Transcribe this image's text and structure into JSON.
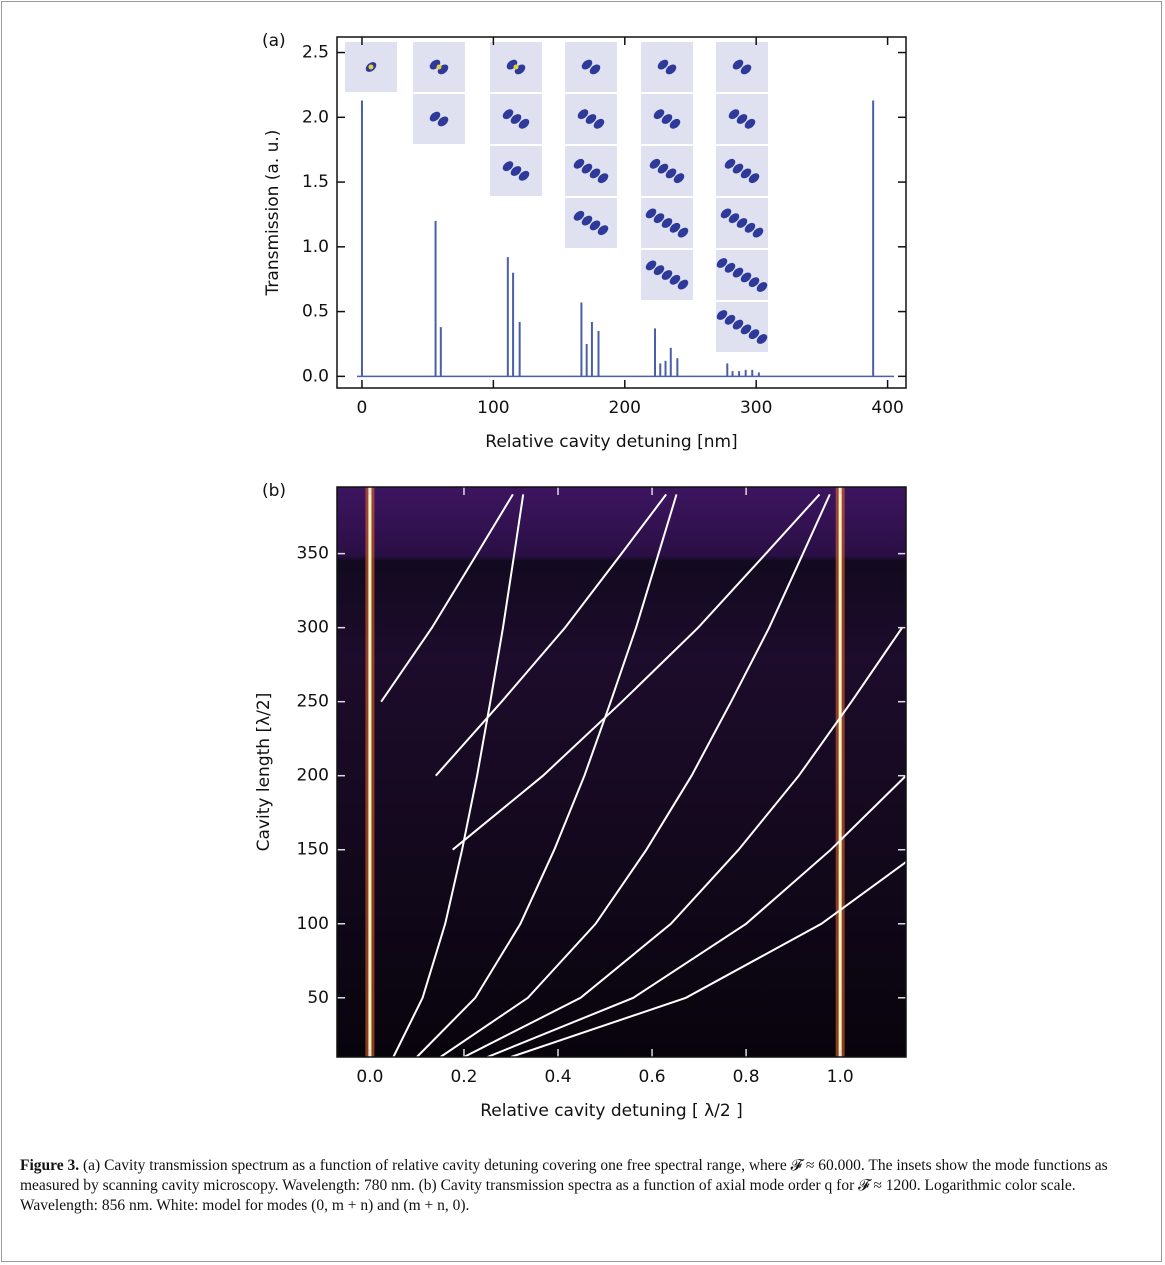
{
  "charts": [
    {
      "type": "spike",
      "panel_label": "(a)",
      "x_label": "Relative cavity detuning [nm]",
      "y_label": "Transmission (a. u.)",
      "x": [
        0,
        56,
        60,
        111,
        115,
        120,
        167,
        171,
        175,
        180,
        223,
        227,
        231,
        235,
        240,
        278,
        282,
        287,
        292,
        297,
        302,
        389
      ],
      "values": [
        2.13,
        1.2,
        0.38,
        0.92,
        0.8,
        0.42,
        0.57,
        0.25,
        0.42,
        0.35,
        0.37,
        0.1,
        0.12,
        0.22,
        0.14,
        0.1,
        0.04,
        0.04,
        0.05,
        0.05,
        0.03,
        2.13
      ],
      "color": "#4a5fa8",
      "xlim": [
        -19,
        414
      ],
      "ylim": [
        -0.09,
        2.62
      ],
      "xticks": [
        0,
        100,
        200,
        300,
        400
      ],
      "yticks": [
        {
          "value": 0,
          "label": "0.0"
        },
        0.5,
        {
          "value": 1,
          "label": "1.0"
        },
        1.5,
        {
          "value": 2,
          "label": "2.0"
        },
        2.5
      ]
    },
    {
      "type": "line",
      "panel_label": "(b)",
      "x_label": "Relative cavity detuning [ λ/2 ]",
      "y_label": "Cavity length [λ/2]",
      "resonances": [
        0,
        1
      ],
      "series": [
        {
          "color": "#ffffff",
          "x": [
            0.05,
            0.112,
            0.16,
            0.196,
            0.228,
            0.256,
            0.283,
            0.307,
            0.326
          ],
          "y": [
            10,
            50,
            100,
            150,
            200,
            250,
            300,
            350,
            390
          ]
        },
        {
          "color": "#ffffff",
          "x": [
            0.1,
            0.224,
            0.32,
            0.392,
            0.456,
            0.512,
            0.566,
            0.614,
            0.652
          ],
          "y": [
            10,
            50,
            100,
            150,
            200,
            250,
            300,
            350,
            390
          ]
        },
        {
          "color": "#ffffff",
          "x": [
            0.15,
            0.336,
            0.48,
            0.588,
            0.684,
            0.768,
            0.849,
            0.921,
            0.978
          ],
          "y": [
            10,
            50,
            100,
            150,
            200,
            250,
            300,
            350,
            390
          ]
        },
        {
          "color": "#ffffff",
          "x": [
            0.2,
            0.448,
            0.64,
            0.784,
            0.912,
            1.024,
            1.132,
            null,
            0.024,
            0.132,
            0.228,
            0.304
          ],
          "y": [
            10,
            50,
            100,
            150,
            200,
            250,
            300,
            null,
            250,
            300,
            350,
            390
          ]
        },
        {
          "color": "#ffffff",
          "x": [
            0.25,
            0.56,
            0.8,
            0.98,
            1.14,
            null,
            0.14,
            0.28,
            0.415,
            0.535,
            0.63
          ],
          "y": [
            10,
            50,
            100,
            150,
            200,
            null,
            200,
            250,
            300,
            350,
            390
          ]
        },
        {
          "color": "#ffffff",
          "x": [
            0.3,
            0.672,
            0.96,
            1.176,
            null,
            0.176,
            0.368,
            0.536,
            0.698,
            0.842,
            0.956
          ],
          "y": [
            10,
            50,
            100,
            150,
            null,
            150,
            200,
            250,
            300,
            350,
            390
          ]
        }
      ],
      "xlim": [
        -0.07,
        1.14
      ],
      "ylim": [
        10,
        395
      ],
      "xticks": [
        {
          "value": 0,
          "label": "0.0"
        },
        0.2,
        0.4,
        0.6,
        0.8,
        {
          "value": 1,
          "label": "1.0"
        }
      ],
      "yticks": [
        50,
        100,
        150,
        200,
        250,
        300,
        350
      ]
    }
  ],
  "caption": {
    "label": "Figure 3.",
    "text": "(a) Cavity transmission spectrum as a function of relative cavity detuning covering one free spectral range, where 𝓕 ≈ 60.000. The insets show the mode functions as measured by scanning cavity microscopy. Wavelength: 780 nm. (b) Cavity transmission spectra as a function of axial mode order q for 𝓕 ≈ 1200. Logarithmic color scale. Wavelength: 856 nm. White: model for modes (0, m + n) and (m + n, 0)."
  }
}
